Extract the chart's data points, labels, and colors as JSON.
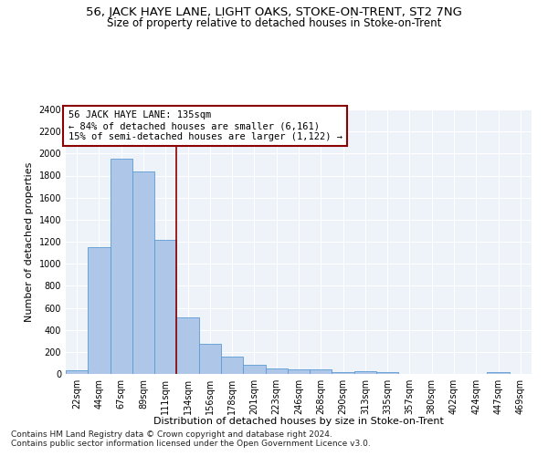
{
  "title1": "56, JACK HAYE LANE, LIGHT OAKS, STOKE-ON-TRENT, ST2 7NG",
  "title2": "Size of property relative to detached houses in Stoke-on-Trent",
  "xlabel": "Distribution of detached houses by size in Stoke-on-Trent",
  "ylabel": "Number of detached properties",
  "categories": [
    "22sqm",
    "44sqm",
    "67sqm",
    "89sqm",
    "111sqm",
    "134sqm",
    "156sqm",
    "178sqm",
    "201sqm",
    "223sqm",
    "246sqm",
    "268sqm",
    "290sqm",
    "313sqm",
    "335sqm",
    "357sqm",
    "380sqm",
    "402sqm",
    "424sqm",
    "447sqm",
    "469sqm"
  ],
  "values": [
    30,
    1150,
    1950,
    1840,
    1215,
    510,
    275,
    155,
    80,
    50,
    45,
    40,
    20,
    25,
    15,
    0,
    0,
    0,
    0,
    20,
    0
  ],
  "bar_color": "#aec6e8",
  "bar_edge_color": "#5b9bd5",
  "red_line_x": 4.5,
  "annotation_line1": "56 JACK HAYE LANE: 135sqm",
  "annotation_line2": "← 84% of detached houses are smaller (6,161)",
  "annotation_line3": "15% of semi-detached houses are larger (1,122) →",
  "ylim": [
    0,
    2400
  ],
  "yticks": [
    0,
    200,
    400,
    600,
    800,
    1000,
    1200,
    1400,
    1600,
    1800,
    2000,
    2200,
    2400
  ],
  "background_color": "#eef2f9",
  "footer1": "Contains HM Land Registry data © Crown copyright and database right 2024.",
  "footer2": "Contains public sector information licensed under the Open Government Licence v3.0.",
  "title1_fontsize": 9.5,
  "title2_fontsize": 8.5,
  "xlabel_fontsize": 8,
  "ylabel_fontsize": 8,
  "tick_fontsize": 7,
  "annotation_fontsize": 7.5,
  "footer_fontsize": 6.5
}
